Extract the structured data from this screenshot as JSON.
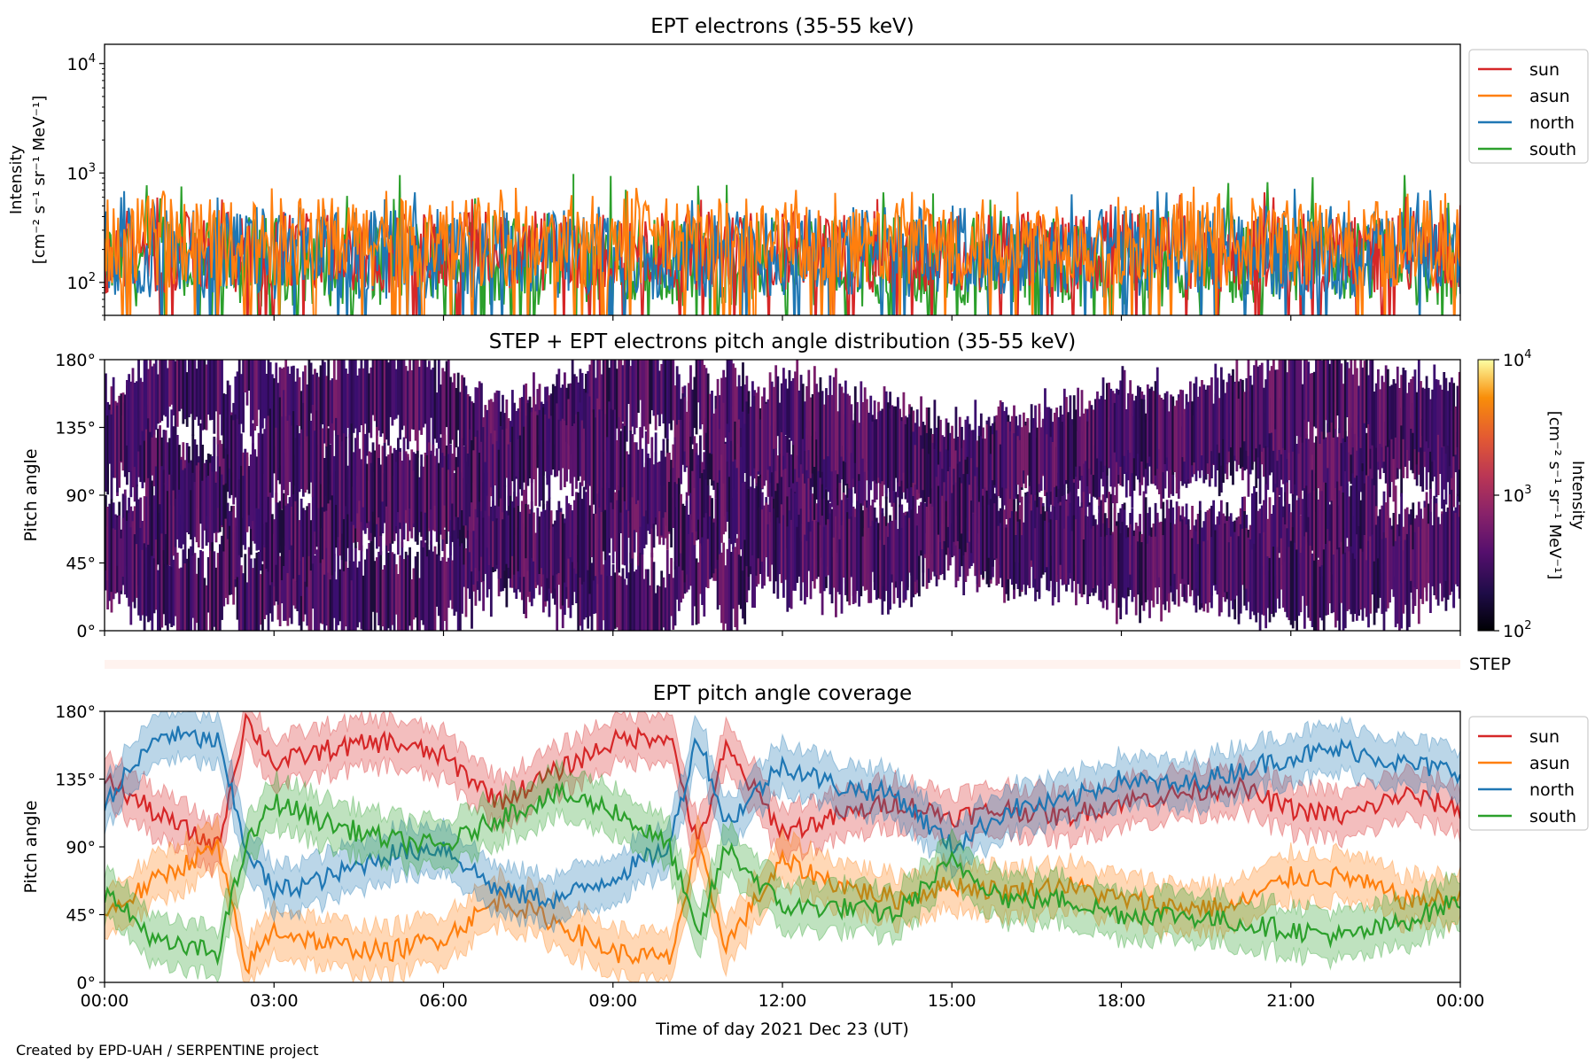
{
  "figure": {
    "credit": "Created by EPD-UAH / SERPENTINE project",
    "xlabel": "Time of day 2021 Dec 23 (UT)",
    "x_ticks": [
      "00:00",
      "03:00",
      "06:00",
      "09:00",
      "12:00",
      "15:00",
      "18:00",
      "21:00",
      "00:00"
    ]
  },
  "chart_data": [
    {
      "type": "line",
      "title": "EPT electrons (35-55 keV)",
      "ylabel_line1": "Intensity",
      "ylabel_line2": "[cm⁻² s⁻¹ sr⁻¹ MeV⁻¹]",
      "yscale": "log",
      "ylim": [
        50,
        15000
      ],
      "y_ticks": [
        {
          "base": "10",
          "exp": "2",
          "value": 100
        },
        {
          "base": "10",
          "exp": "3",
          "value": 1000
        },
        {
          "base": "10",
          "exp": "4",
          "value": 10000
        }
      ],
      "xlim_hours": [
        0,
        24
      ],
      "legend_placement": "outside-upper-right",
      "series": [
        {
          "name": "sun",
          "color": "#d62728",
          "typical": [
            80,
            450
          ],
          "peak": 700
        },
        {
          "name": "asun",
          "color": "#ff7f0e",
          "typical": [
            90,
            600
          ],
          "peak": 750
        },
        {
          "name": "north",
          "color": "#1f77b4",
          "typical": [
            70,
            500
          ],
          "peak": 720
        },
        {
          "name": "south",
          "color": "#2ca02c",
          "typical": [
            60,
            400
          ],
          "peak": 980
        }
      ]
    },
    {
      "type": "heatmap",
      "title": "STEP + EPT electrons pitch angle distribution (35-55 keV)",
      "ylabel": "Pitch angle",
      "ylim": [
        0,
        180
      ],
      "y_ticks": [
        "0°",
        "45°",
        "90°",
        "135°",
        "180°"
      ],
      "colorbar": {
        "label_line1": "Intensity",
        "label_line2": "[cm⁻² s⁻¹ sr⁻¹ MeV⁻¹]",
        "scale": "log",
        "range": [
          100,
          10000
        ],
        "ticks": [
          {
            "base": "10",
            "exp": "2"
          },
          {
            "base": "10",
            "exp": "3"
          },
          {
            "base": "10",
            "exp": "4"
          }
        ],
        "colormap": "inferno"
      }
    },
    {
      "type": "heatmap",
      "label": "STEP",
      "values": "empty"
    },
    {
      "type": "line",
      "title": "EPT pitch angle coverage",
      "ylabel": "Pitch angle",
      "ylim": [
        0,
        180
      ],
      "y_ticks": [
        "0°",
        "45°",
        "90°",
        "135°",
        "180°"
      ],
      "legend_placement": "outside-upper-right",
      "series": [
        {
          "name": "sun",
          "color": "#d62728",
          "x_hours": [
            0,
            1,
            2,
            2.5,
            3,
            4,
            5,
            6,
            7,
            8,
            9,
            10,
            10.5,
            11,
            12,
            13,
            14,
            15,
            16,
            17,
            18,
            19,
            20,
            21,
            22,
            23,
            24
          ],
          "values": [
            135,
            110,
            90,
            175,
            145,
            155,
            160,
            150,
            120,
            140,
            160,
            165,
            90,
            155,
            100,
            110,
            120,
            110,
            115,
            110,
            120,
            125,
            130,
            115,
            110,
            125,
            115
          ]
        },
        {
          "name": "asun",
          "color": "#ff7f0e",
          "x_hours": [
            0,
            1,
            2,
            2.5,
            3,
            4,
            5,
            6,
            7,
            8,
            9,
            10,
            10.5,
            11,
            12,
            13,
            14,
            15,
            16,
            17,
            18,
            19,
            20,
            21,
            22,
            23,
            24
          ],
          "values": [
            45,
            70,
            90,
            10,
            35,
            25,
            20,
            30,
            55,
            40,
            20,
            15,
            90,
            25,
            80,
            65,
            55,
            65,
            60,
            65,
            55,
            50,
            50,
            70,
            70,
            55,
            55
          ]
        },
        {
          "name": "north",
          "color": "#1f77b4",
          "x_hours": [
            0,
            1,
            2,
            2.5,
            3,
            4,
            5,
            6,
            7,
            8,
            9,
            10,
            10.5,
            11,
            12,
            13,
            14,
            15,
            16,
            17,
            18,
            19,
            20,
            21,
            22,
            23,
            24
          ],
          "values": [
            120,
            165,
            160,
            90,
            60,
            70,
            85,
            90,
            60,
            55,
            70,
            90,
            165,
            105,
            145,
            130,
            125,
            90,
            115,
            120,
            135,
            130,
            140,
            150,
            155,
            145,
            140
          ]
        },
        {
          "name": "south",
          "color": "#2ca02c",
          "x_hours": [
            0,
            1,
            2,
            2.5,
            3,
            4,
            5,
            6,
            7,
            8,
            9,
            10,
            10.5,
            11,
            12,
            13,
            14,
            15,
            16,
            17,
            18,
            19,
            20,
            21,
            22,
            23,
            24
          ],
          "values": [
            60,
            25,
            20,
            90,
            120,
            105,
            95,
            90,
            110,
            125,
            115,
            90,
            30,
            90,
            50,
            50,
            45,
            80,
            55,
            55,
            45,
            45,
            40,
            35,
            30,
            40,
            55
          ]
        }
      ]
    }
  ]
}
